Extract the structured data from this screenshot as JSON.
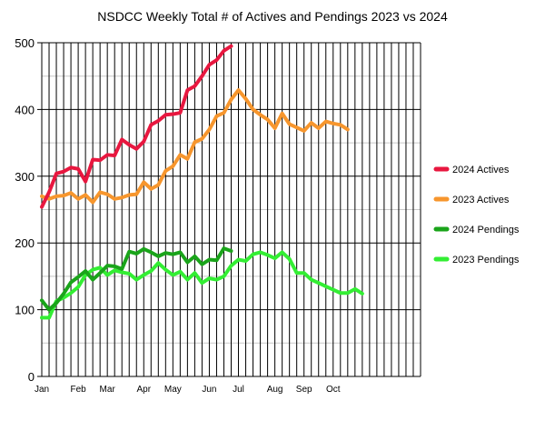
{
  "chart_data": {
    "type": "line",
    "title": "NSDCC Weekly Total # of Actives and Pendings 2023 vs 2024",
    "xlabel": "",
    "ylabel": "",
    "ylim": [
      0,
      500
    ],
    "yticks": [
      0,
      100,
      200,
      300,
      400,
      500
    ],
    "x_week_range": [
      1,
      53
    ],
    "month_labels": [
      {
        "label": "Jan",
        "week": 1
      },
      {
        "label": "Feb",
        "week": 6
      },
      {
        "label": "Mar",
        "week": 10
      },
      {
        "label": "Apr",
        "week": 15
      },
      {
        "label": "May",
        "week": 19
      },
      {
        "label": "Jun",
        "week": 24
      },
      {
        "label": "Jul",
        "week": 28
      },
      {
        "label": "Aug",
        "week": 33
      },
      {
        "label": "Sep",
        "week": 37
      },
      {
        "label": "Oct",
        "week": 41
      }
    ],
    "grid": {
      "vertical_weekly": true,
      "horizontal_major_every": 100,
      "horizontal_minor_every": 50
    },
    "legend_position": "right",
    "series": [
      {
        "name": "2024 Actives",
        "color": "#e8173f",
        "values": [
          254,
          276,
          304,
          307,
          313,
          311,
          292,
          325,
          324,
          332,
          331,
          355,
          347,
          341,
          352,
          377,
          383,
          392,
          393,
          395,
          429,
          435,
          450,
          467,
          474,
          488,
          495
        ]
      },
      {
        "name": "2023 Actives",
        "color": "#f7962d",
        "values": [
          270,
          266,
          270,
          271,
          275,
          266,
          272,
          261,
          276,
          273,
          266,
          268,
          272,
          273,
          291,
          281,
          287,
          308,
          315,
          332,
          326,
          351,
          356,
          370,
          390,
          395,
          415,
          429,
          416,
          400,
          392,
          385,
          372,
          394,
          378,
          373,
          368,
          380,
          372,
          382,
          379,
          377,
          370
        ]
      },
      {
        "name": "2024 Pendings",
        "color": "#1aa41a",
        "values": [
          114,
          100,
          110,
          124,
          141,
          149,
          158,
          145,
          155,
          166,
          165,
          161,
          187,
          184,
          191,
          186,
          180,
          185,
          183,
          186,
          171,
          180,
          168,
          175,
          174,
          192,
          188
        ]
      },
      {
        "name": "2023 Pendings",
        "color": "#33ee33",
        "values": [
          88,
          88,
          113,
          118,
          125,
          134,
          152,
          160,
          163,
          152,
          159,
          156,
          154,
          145,
          152,
          158,
          170,
          160,
          152,
          157,
          145,
          155,
          140,
          147,
          145,
          150,
          166,
          175,
          173,
          183,
          186,
          182,
          177,
          186,
          176,
          155,
          155,
          145,
          140,
          135,
          130,
          125,
          125,
          131,
          124
        ]
      }
    ]
  }
}
